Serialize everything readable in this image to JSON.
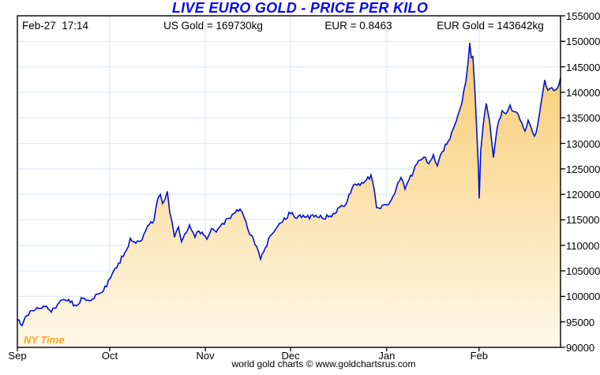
{
  "header": {
    "title": "LIVE EURO GOLD - PRICE PER KILO",
    "timestamp": "Feb-27  17:14",
    "us_gold": "US Gold = 169730kg",
    "eur_rate": "EUR = 0.8463",
    "eur_gold": "EUR Gold = 143642kg"
  },
  "watermark": "NY Time",
  "footer": {
    "credit": "world gold charts © www.goldchartsrus.com"
  },
  "chart_data": {
    "type": "line",
    "title": "LIVE EURO GOLD - PRICE PER KILO",
    "last_price": 143642,
    "grid": true,
    "legend": "none",
    "y_axis": {
      "min": 90000,
      "max": 155000,
      "step": 5000,
      "side": "right"
    },
    "x_axis": {
      "ticks": [
        {
          "label": "Sep",
          "t": 0.0
        },
        {
          "label": "Oct",
          "t": 0.17
        },
        {
          "label": "Nov",
          "t": 0.346
        },
        {
          "label": "Dec",
          "t": 0.503
        },
        {
          "label": "Jan",
          "t": 0.68
        },
        {
          "label": "Feb",
          "t": 0.85
        }
      ]
    },
    "colors": {
      "title": "#0a0aee",
      "line": "#0013cc",
      "fill_top": "#f7c156",
      "fill_bottom": "#fff8e8",
      "grid": "#dce9f7",
      "border": "#000000",
      "watermark": "#f5a81e"
    },
    "series": [
      {
        "name": "EUR Gold price per kilo",
        "points": [
          [
            0.0,
            95400
          ],
          [
            0.0087,
            94300
          ],
          [
            0.017,
            96200
          ],
          [
            0.0334,
            97400
          ],
          [
            0.048,
            98100
          ],
          [
            0.0625,
            96900
          ],
          [
            0.077,
            98800
          ],
          [
            0.0916,
            99100
          ],
          [
            0.1061,
            98300
          ],
          [
            0.1206,
            99600
          ],
          [
            0.1352,
            99200
          ],
          [
            0.1497,
            100500
          ],
          [
            0.1642,
            101900
          ],
          [
            0.1715,
            103600
          ],
          [
            0.186,
            106500
          ],
          [
            0.2006,
            109000
          ],
          [
            0.2078,
            111400
          ],
          [
            0.2151,
            110700
          ],
          [
            0.2297,
            111100
          ],
          [
            0.2398,
            113800
          ],
          [
            0.2515,
            114800
          ],
          [
            0.2587,
            119200
          ],
          [
            0.2631,
            120000
          ],
          [
            0.2674,
            118200
          ],
          [
            0.2718,
            119000
          ],
          [
            0.2762,
            120600
          ],
          [
            0.2805,
            116500
          ],
          [
            0.2849,
            114500
          ],
          [
            0.2892,
            111600
          ],
          [
            0.2965,
            113600
          ],
          [
            0.3023,
            110700
          ],
          [
            0.311,
            112500
          ],
          [
            0.3169,
            114000
          ],
          [
            0.327,
            111600
          ],
          [
            0.3343,
            112800
          ],
          [
            0.343,
            112000
          ],
          [
            0.3488,
            111200
          ],
          [
            0.3576,
            113300
          ],
          [
            0.3663,
            112600
          ],
          [
            0.3779,
            114300
          ],
          [
            0.3895,
            115300
          ],
          [
            0.4012,
            116400
          ],
          [
            0.4099,
            117100
          ],
          [
            0.4172,
            115600
          ],
          [
            0.4244,
            113100
          ],
          [
            0.4317,
            111900
          ],
          [
            0.4404,
            109800
          ],
          [
            0.4477,
            107300
          ],
          [
            0.4564,
            109500
          ],
          [
            0.4651,
            111800
          ],
          [
            0.4695,
            112300
          ],
          [
            0.4797,
            113800
          ],
          [
            0.4913,
            115400
          ],
          [
            0.5029,
            116200
          ],
          [
            0.5145,
            115300
          ],
          [
            0.5262,
            115900
          ],
          [
            0.5378,
            115200
          ],
          [
            0.5494,
            115900
          ],
          [
            0.5611,
            115400
          ],
          [
            0.5727,
            115600
          ],
          [
            0.5843,
            116200
          ],
          [
            0.593,
            117400
          ],
          [
            0.6047,
            118000
          ],
          [
            0.6134,
            120200
          ],
          [
            0.6221,
            122000
          ],
          [
            0.6337,
            122300
          ],
          [
            0.6424,
            122800
          ],
          [
            0.6512,
            123800
          ],
          [
            0.657,
            121000
          ],
          [
            0.6614,
            117400
          ],
          [
            0.6686,
            117200
          ],
          [
            0.6802,
            117900
          ],
          [
            0.689,
            119000
          ],
          [
            0.6977,
            121200
          ],
          [
            0.7064,
            123300
          ],
          [
            0.7137,
            121000
          ],
          [
            0.7209,
            122800
          ],
          [
            0.7297,
            124600
          ],
          [
            0.7384,
            126600
          ],
          [
            0.7486,
            127300
          ],
          [
            0.7573,
            126000
          ],
          [
            0.766,
            127800
          ],
          [
            0.7733,
            125600
          ],
          [
            0.782,
            128300
          ],
          [
            0.7936,
            130500
          ],
          [
            0.8023,
            132800
          ],
          [
            0.811,
            135500
          ],
          [
            0.8183,
            137800
          ],
          [
            0.8256,
            142000
          ],
          [
            0.8299,
            146000
          ],
          [
            0.8328,
            149700
          ],
          [
            0.8357,
            146800
          ],
          [
            0.8386,
            147000
          ],
          [
            0.843,
            139000
          ],
          [
            0.8459,
            132000
          ],
          [
            0.8488,
            125000
          ],
          [
            0.8503,
            119200
          ],
          [
            0.8532,
            128500
          ],
          [
            0.8576,
            133500
          ],
          [
            0.8634,
            137800
          ],
          [
            0.8692,
            134500
          ],
          [
            0.8765,
            127200
          ],
          [
            0.8808,
            131000
          ],
          [
            0.8866,
            134500
          ],
          [
            0.8924,
            136400
          ],
          [
            0.8997,
            135800
          ],
          [
            0.907,
            137500
          ],
          [
            0.9142,
            136200
          ],
          [
            0.9215,
            135800
          ],
          [
            0.9288,
            134000
          ],
          [
            0.9346,
            132400
          ],
          [
            0.9404,
            134500
          ],
          [
            0.9462,
            133000
          ],
          [
            0.952,
            131400
          ],
          [
            0.9578,
            133500
          ],
          [
            0.9637,
            137500
          ],
          [
            0.9709,
            142400
          ],
          [
            0.9767,
            140400
          ],
          [
            0.984,
            140900
          ],
          [
            0.9913,
            140500
          ],
          [
            0.9971,
            141500
          ],
          [
            1.0,
            142800
          ]
        ]
      }
    ]
  }
}
